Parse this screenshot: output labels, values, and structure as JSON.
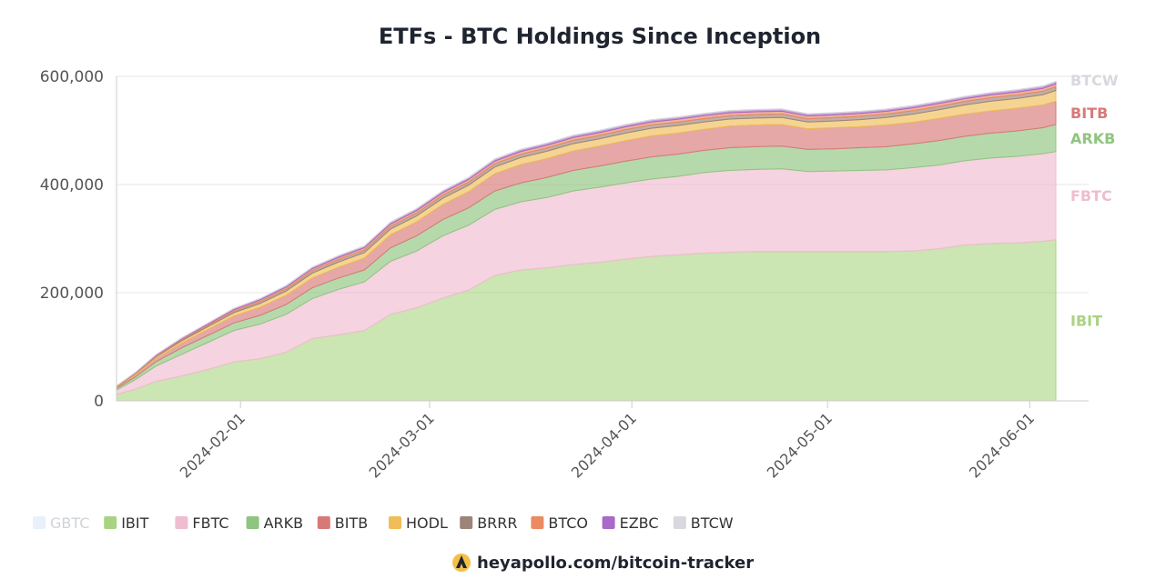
{
  "chart_data": {
    "type": "area",
    "stacked": true,
    "title": "ETFs - BTC Holdings Since Inception",
    "xlabel": "",
    "ylabel": "",
    "ylim": [
      0,
      600000
    ],
    "grid": true,
    "y_ticks": [
      0,
      200000,
      400000,
      600000
    ],
    "y_tick_labels": [
      "0",
      "200,000",
      "400,000",
      "600,000"
    ],
    "x_tick_labels": [
      "2024-02-01",
      "2024-03-01",
      "2024-04-01",
      "2024-05-01",
      "2024-06-01"
    ],
    "x_tick_days": [
      21,
      50,
      81,
      111,
      142
    ],
    "x_range_days": [
      2,
      146
    ],
    "x_day_zero": "2024-01-11",
    "x_days": [
      2,
      5,
      8,
      12,
      16,
      20,
      24,
      28,
      32,
      36,
      40,
      44,
      48,
      52,
      56,
      60,
      64,
      68,
      72,
      76,
      80,
      84,
      88,
      92,
      96,
      100,
      104,
      108,
      112,
      116,
      120,
      124,
      128,
      132,
      136,
      140,
      144,
      146
    ],
    "series": [
      {
        "name": "GBTC",
        "color": "#e8f1fa",
        "hidden": true,
        "values": []
      },
      {
        "name": "IBIT",
        "color": "#a9d381",
        "values": [
          12000,
          22000,
          36000,
          46000,
          58000,
          72000,
          78000,
          90000,
          115000,
          122000,
          130000,
          160000,
          172000,
          190000,
          205000,
          232000,
          242000,
          246000,
          252000,
          256000,
          262000,
          267000,
          270000,
          273000,
          275000,
          276000,
          276000,
          276000,
          276000,
          276000,
          276000,
          277000,
          281000,
          288000,
          291000,
          292000,
          295000,
          298000
        ]
      },
      {
        "name": "FBTC",
        "color": "#f0bcd0",
        "values": [
          8000,
          18000,
          28000,
          40000,
          50000,
          58000,
          64000,
          70000,
          74000,
          84000,
          90000,
          98000,
          105000,
          115000,
          120000,
          122000,
          126000,
          130000,
          136000,
          139000,
          141000,
          143000,
          145000,
          149000,
          151000,
          152000,
          153000,
          148000,
          149000,
          150000,
          151000,
          154000,
          155000,
          156000,
          158000,
          160000,
          162000,
          163000
        ]
      },
      {
        "name": "ARKB",
        "color": "#8fc57f",
        "values": [
          3000,
          5000,
          8000,
          12000,
          13000,
          14000,
          16000,
          18000,
          20000,
          21000,
          22000,
          25000,
          28000,
          30000,
          32000,
          34000,
          35000,
          37000,
          38000,
          39000,
          40000,
          41000,
          41000,
          41000,
          42000,
          42000,
          42000,
          41000,
          41000,
          42000,
          43000,
          44000,
          45000,
          45000,
          46000,
          47000,
          48000,
          50000
        ]
      },
      {
        "name": "BITB",
        "color": "#d77a77",
        "values": [
          2000,
          4000,
          6000,
          9000,
          11000,
          13000,
          15000,
          17000,
          18000,
          20000,
          22000,
          24000,
          26000,
          28000,
          30000,
          32000,
          34000,
          35000,
          36000,
          37000,
          38000,
          39000,
          39000,
          39000,
          40000,
          40000,
          40000,
          38000,
          39000,
          39000,
          40000,
          40000,
          41000,
          41000,
          41000,
          42000,
          42000,
          43000
        ]
      },
      {
        "name": "HODL",
        "color": "#f0bd58",
        "values": [
          1000,
          2000,
          3000,
          4000,
          5000,
          6000,
          7000,
          8000,
          9000,
          9500,
          10000,
          10500,
          11000,
          11500,
          12000,
          12500,
          13000,
          13500,
          13500,
          13500,
          14000,
          14000,
          14000,
          13500,
          13000,
          13000,
          13000,
          12500,
          12500,
          13000,
          14000,
          15000,
          16000,
          17000,
          18000,
          18000,
          19000,
          20000
        ]
      },
      {
        "name": "BRRR",
        "color": "#9c8478",
        "values": [
          600,
          1000,
          1500,
          2000,
          2500,
          3000,
          3500,
          4000,
          4500,
          4800,
          5000,
          5200,
          5400,
          5600,
          5800,
          6000,
          6200,
          6200,
          6300,
          6300,
          6400,
          6400,
          6400,
          6400,
          6400,
          6400,
          6400,
          6200,
          6200,
          6300,
          6300,
          6400,
          6400,
          6500,
          6500,
          6600,
          6600,
          6700
        ]
      },
      {
        "name": "BTCO",
        "color": "#ec8a61",
        "values": [
          500,
          900,
          1300,
          1800,
          2200,
          2600,
          3000,
          3300,
          3600,
          3800,
          4000,
          4200,
          4400,
          4600,
          4700,
          4800,
          4900,
          5000,
          5000,
          5000,
          5100,
          5100,
          5100,
          5100,
          5100,
          5100,
          5100,
          5000,
          5000,
          5000,
          5000,
          5100,
          5100,
          5100,
          5200,
          5200,
          5200,
          5300
        ]
      },
      {
        "name": "EZBC",
        "color": "#a96ac8",
        "values": [
          400,
          700,
          1100,
          1500,
          1900,
          2200,
          2500,
          2700,
          2900,
          3000,
          3100,
          3200,
          3300,
          3400,
          3500,
          3600,
          3700,
          3700,
          3800,
          3800,
          3800,
          3800,
          3800,
          3800,
          3800,
          3800,
          3800,
          3700,
          3700,
          3700,
          3800,
          3800,
          3800,
          3800,
          3900,
          3900,
          3900,
          4000
        ]
      },
      {
        "name": "BTCW",
        "color": "#d8d8de",
        "values": [
          100,
          150,
          200,
          250,
          300,
          350,
          400,
          420,
          440,
          460,
          480,
          500,
          520,
          540,
          560,
          580,
          600,
          600,
          610,
          620,
          620,
          620,
          620,
          620,
          620,
          620,
          620,
          600,
          600,
          600,
          610,
          620,
          630,
          640,
          650,
          660,
          670,
          680
        ]
      }
    ],
    "end_labels": [
      {
        "name": "BTCW",
        "color": "#d8d8de"
      },
      {
        "name": "BITB",
        "color": "#d77a77"
      },
      {
        "name": "ARKB",
        "color": "#8fc57f"
      },
      {
        "name": "FBTC",
        "color": "#f0bcd0"
      },
      {
        "name": "IBIT",
        "color": "#a9d381"
      }
    ],
    "legend_position": "bottom-left"
  },
  "footer": {
    "text": "heyapollo.com/bitcoin-tracker",
    "logo_icon": "apollo-logo-icon"
  }
}
